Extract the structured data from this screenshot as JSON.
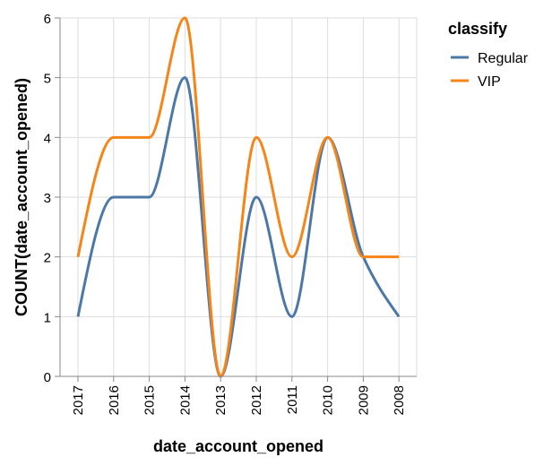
{
  "chart_data": {
    "type": "line",
    "interpolation": "monotone",
    "x": [
      "2017",
      "2016",
      "2015",
      "2014",
      "2013",
      "2012",
      "2011",
      "2010",
      "2009",
      "2008"
    ],
    "series": [
      {
        "name": "Regular",
        "color": "#4c78a8",
        "values": [
          1,
          3,
          3,
          5,
          0,
          3,
          1,
          4,
          2,
          1
        ]
      },
      {
        "name": "VIP",
        "color": "#f58518",
        "values": [
          2,
          4,
          4,
          6,
          0,
          4,
          2,
          4,
          2,
          2
        ]
      }
    ],
    "y_ticks": [
      0,
      1,
      2,
      3,
      4,
      5,
      6
    ],
    "xlabel": "date_account_opened",
    "ylabel": "COUNT(date_account_opened)",
    "ylim": [
      0,
      6
    ],
    "grid": true,
    "legend": {
      "title": "classify",
      "placement": "right"
    }
  }
}
